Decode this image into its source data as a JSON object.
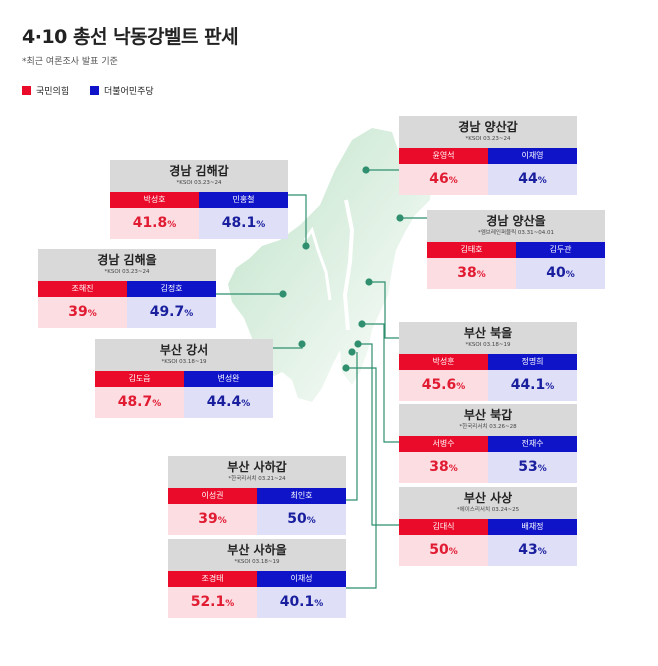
{
  "title": "4·10 총선 낙동강벨트 판세",
  "subtitle": "*최근 여론조사 발표 기준",
  "legend": [
    {
      "label": "국민의힘",
      "color": "#ea0a29"
    },
    {
      "label": "더불어민주당",
      "color": "#1014c9"
    }
  ],
  "colors": {
    "red": "#ea0a29",
    "blue": "#1014c9",
    "red_bg": "#fcdde2",
    "blue_bg": "#dfe0f8",
    "header_bg": "#d9d9d9",
    "line": "#2f8f6f"
  },
  "districts": [
    {
      "id": "gimhae-gap",
      "name": "경남 김해갑",
      "source": "*KSOI 03.23~24",
      "red": {
        "name": "박성호",
        "pct": "41.8"
      },
      "blue": {
        "name": "민홍철",
        "pct": "48.1"
      }
    },
    {
      "id": "gimhae-eul",
      "name": "경남 김해을",
      "source": "*KSOI 03.23~24",
      "red": {
        "name": "조해진",
        "pct": "39"
      },
      "blue": {
        "name": "김정호",
        "pct": "49.7"
      }
    },
    {
      "id": "busan-gangseo",
      "name": "부산 강서",
      "source": "*KSOI 03.18~19",
      "red": {
        "name": "김도읍",
        "pct": "48.7"
      },
      "blue": {
        "name": "변성완",
        "pct": "44.4"
      }
    },
    {
      "id": "busan-saha-gap",
      "name": "부산 사하갑",
      "source": "*한국리서치 03.21~24",
      "red": {
        "name": "이성권",
        "pct": "39"
      },
      "blue": {
        "name": "최인호",
        "pct": "50"
      }
    },
    {
      "id": "busan-saha-eul",
      "name": "부산 사하을",
      "source": "*KSOI 03.18~19",
      "red": {
        "name": "조경태",
        "pct": "52.1"
      },
      "blue": {
        "name": "이재성",
        "pct": "40.1"
      }
    },
    {
      "id": "yangsan-gap",
      "name": "경남 양산갑",
      "source": "*KSOI 03.23~24",
      "red": {
        "name": "윤영석",
        "pct": "46"
      },
      "blue": {
        "name": "이재영",
        "pct": "44"
      }
    },
    {
      "id": "yangsan-eul",
      "name": "경남 양산을",
      "source": "*엠브레인퍼블릭 03.31~04.01",
      "red": {
        "name": "김태호",
        "pct": "38"
      },
      "blue": {
        "name": "김두관",
        "pct": "40"
      }
    },
    {
      "id": "busan-bukeul",
      "name": "부산 북을",
      "source": "*KSOI 03.18~19",
      "red": {
        "name": "박성훈",
        "pct": "45.6"
      },
      "blue": {
        "name": "정명희",
        "pct": "44.1"
      }
    },
    {
      "id": "busan-bukgap",
      "name": "부산 북갑",
      "source": "*한국리서치 03.26~28",
      "red": {
        "name": "서병수",
        "pct": "38"
      },
      "blue": {
        "name": "전재수",
        "pct": "53"
      }
    },
    {
      "id": "busan-sasang",
      "name": "부산 사상",
      "source": "*에이스리서치 03.24~25",
      "red": {
        "name": "김대식",
        "pct": "50"
      },
      "blue": {
        "name": "배재정",
        "pct": "43"
      }
    }
  ]
}
